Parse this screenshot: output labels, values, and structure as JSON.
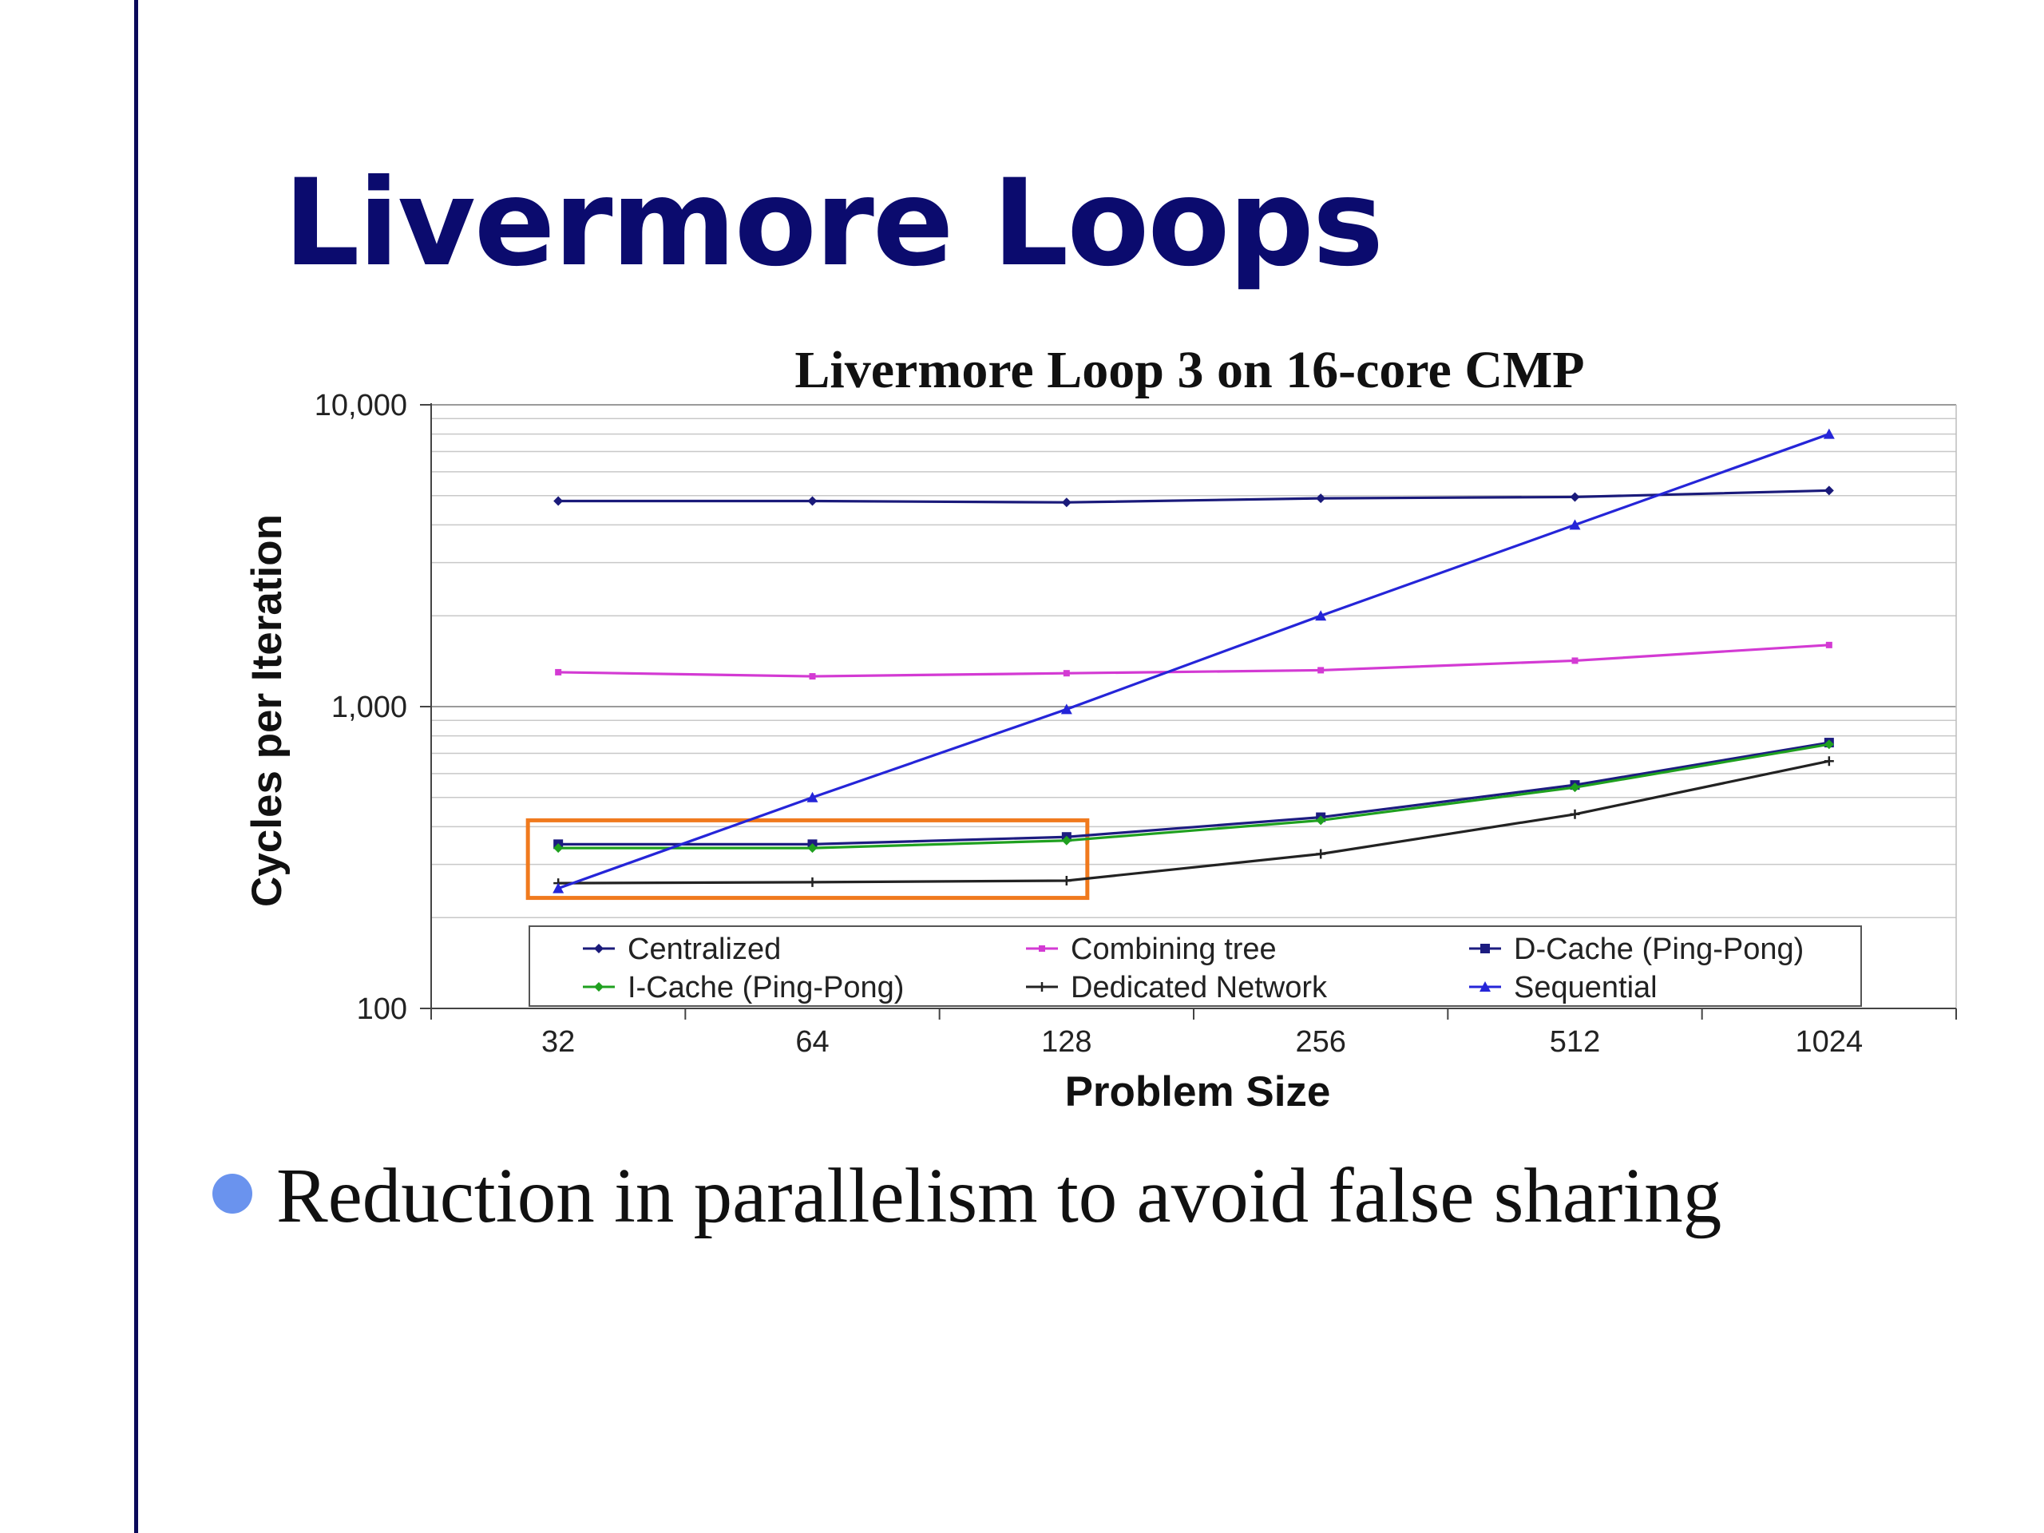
{
  "slide": {
    "title": "Livermore Loops",
    "bullet": "Reduction in parallelism to avoid false sharing"
  },
  "chart_data": {
    "type": "line",
    "title": "Livermore Loop 3 on 16-core CMP",
    "xlabel": "Problem Size",
    "ylabel": "Cycles per Iteration",
    "categories": [
      "32",
      "64",
      "128",
      "256",
      "512",
      "1024"
    ],
    "y_scale": "log",
    "ylim": [
      100,
      10000
    ],
    "y_ticks": [
      100,
      1000,
      10000
    ],
    "y_tick_labels": [
      "100",
      "1,000",
      "10,000"
    ],
    "grid": true,
    "legend_position": "bottom-inside",
    "series": [
      {
        "name": "Centralized",
        "color": "#1a1a7a",
        "marker": "diamond",
        "values": [
          4800,
          4800,
          4750,
          4900,
          4950,
          5200
        ]
      },
      {
        "name": "Combining tree",
        "color": "#d33ad3",
        "marker": "square-small",
        "values": [
          1300,
          1260,
          1290,
          1320,
          1420,
          1600
        ]
      },
      {
        "name": "D-Cache (Ping-Pong)",
        "color": "#1c1c80",
        "marker": "square",
        "values": [
          350,
          350,
          370,
          430,
          550,
          760
        ]
      },
      {
        "name": "I-Cache (Ping-Pong)",
        "color": "#1fa01f",
        "marker": "diamond",
        "values": [
          340,
          340,
          360,
          420,
          540,
          750
        ]
      },
      {
        "name": "Dedicated Network",
        "color": "#222222",
        "marker": "plus",
        "values": [
          260,
          262,
          265,
          325,
          440,
          660
        ]
      },
      {
        "name": "Sequential",
        "color": "#2525d8",
        "marker": "triangle",
        "values": [
          250,
          500,
          980,
          2000,
          4000,
          8000
        ]
      }
    ],
    "annotation": {
      "type": "highlight-box",
      "color": "#f07a1e",
      "x_from": "32",
      "x_to": "128",
      "y_range": [
        250,
        420
      ]
    }
  }
}
